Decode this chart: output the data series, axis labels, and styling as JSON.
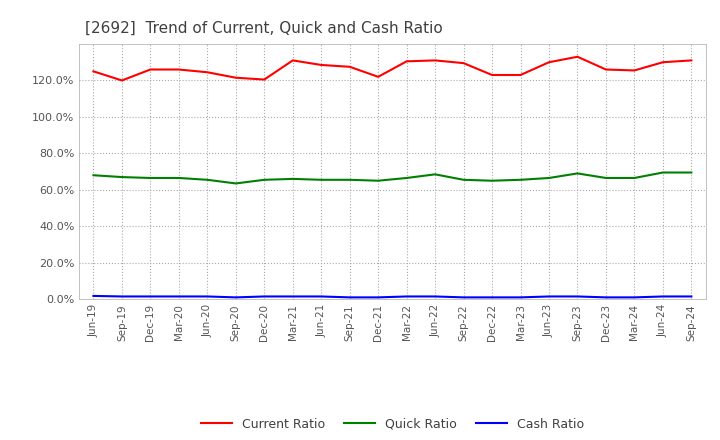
{
  "title": "[2692]  Trend of Current, Quick and Cash Ratio",
  "title_color": "#404040",
  "background_color": "#ffffff",
  "plot_bg_color": "#ffffff",
  "grid_color": "#aaaaaa",
  "x_labels": [
    "Jun-19",
    "Sep-19",
    "Dec-19",
    "Mar-20",
    "Jun-20",
    "Sep-20",
    "Dec-20",
    "Mar-21",
    "Jun-21",
    "Sep-21",
    "Dec-21",
    "Mar-22",
    "Jun-22",
    "Sep-22",
    "Dec-22",
    "Mar-23",
    "Jun-23",
    "Sep-23",
    "Dec-23",
    "Mar-24",
    "Jun-24",
    "Sep-24"
  ],
  "current_ratio": [
    125.0,
    120.0,
    126.0,
    126.0,
    124.5,
    121.5,
    120.5,
    131.0,
    128.5,
    127.5,
    122.0,
    130.5,
    131.0,
    129.5,
    123.0,
    123.0,
    130.0,
    133.0,
    126.0,
    125.5,
    130.0,
    131.0
  ],
  "quick_ratio": [
    68.0,
    67.0,
    66.5,
    66.5,
    65.5,
    63.5,
    65.5,
    66.0,
    65.5,
    65.5,
    65.0,
    66.5,
    68.5,
    65.5,
    65.0,
    65.5,
    66.5,
    69.0,
    66.5,
    66.5,
    69.5,
    69.5
  ],
  "cash_ratio": [
    1.8,
    1.5,
    1.5,
    1.5,
    1.5,
    1.0,
    1.5,
    1.5,
    1.5,
    1.0,
    1.0,
    1.5,
    1.5,
    1.0,
    1.0,
    1.0,
    1.5,
    1.5,
    1.0,
    1.0,
    1.5,
    1.5
  ],
  "current_color": "#ff0000",
  "quick_color": "#008000",
  "cash_color": "#0000ff",
  "line_width": 1.5,
  "ylim": [
    0,
    140
  ],
  "yticks": [
    0,
    20,
    40,
    60,
    80,
    100,
    120
  ],
  "legend_labels": [
    "Current Ratio",
    "Quick Ratio",
    "Cash Ratio"
  ]
}
